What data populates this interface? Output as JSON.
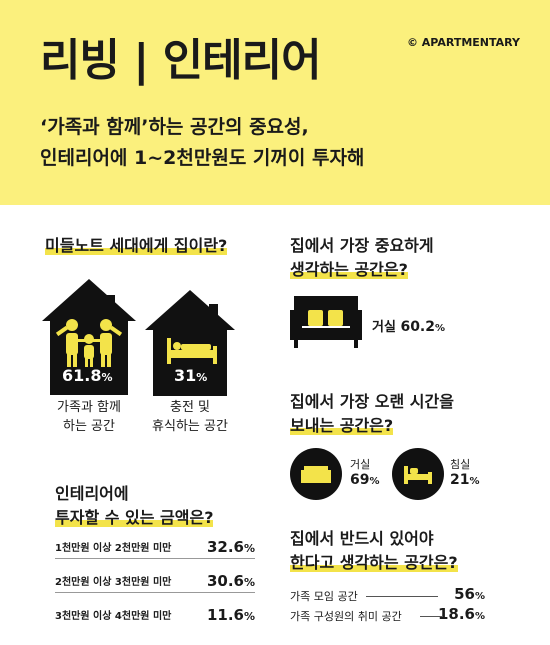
{
  "header": {
    "title": "리빙 | 인테리어",
    "credit": "© APARTMENTARY",
    "subtitle_line1": "‘가족과 함께’하는 공간의 중요성,",
    "subtitle_line2": "인테리어에 1~2천만원도 기꺼이 투자해"
  },
  "home_meaning": {
    "title": "미들노트 세대에게 집이란?",
    "items": [
      {
        "value": "61.8",
        "unit": "%",
        "label_line1": "가족과 함께",
        "label_line2": "하는 공간",
        "icon": "family-house-icon"
      },
      {
        "value": "31",
        "unit": "%",
        "label_line1": "충전 및",
        "label_line2": "휴식하는 공간",
        "icon": "bed-house-icon"
      }
    ]
  },
  "budget": {
    "title_line1": "인테리어에",
    "title_line2": "투자할 수 있는 금액은?",
    "rows": [
      {
        "label": "1천만원 이상 2천만원 미만",
        "value": "32.6",
        "unit": "%"
      },
      {
        "label": "2천만원 이상 3천만원 미만",
        "value": "30.6",
        "unit": "%"
      },
      {
        "label": "3천만원 이상 4천만원 미만",
        "value": "11.6",
        "unit": "%"
      }
    ]
  },
  "important_space": {
    "title_line1": "집에서 가장 중요하게",
    "title_line2": "생각하는 공간은?",
    "label": "거실",
    "value": "60.2",
    "unit": "%",
    "icon": "sofa-icon"
  },
  "longest_time": {
    "title_line1": "집에서 가장 오랜 시간을",
    "title_line2": "보내는 공간은?",
    "items": [
      {
        "label": "거실",
        "value": "69",
        "unit": "%",
        "icon": "sofa-icon"
      },
      {
        "label": "침실",
        "value": "21",
        "unit": "%",
        "icon": "bed-icon"
      }
    ]
  },
  "must_have": {
    "title_line1": "집에서 반드시 있어야",
    "title_line2": "한다고 생각하는 공간은?",
    "rows": [
      {
        "label": "가족 모임 공간",
        "value": "56",
        "unit": "%"
      },
      {
        "label": "가족 구성원의 취미 공간",
        "value": "18.6",
        "unit": "%"
      }
    ]
  },
  "colors": {
    "accent": "#fbf07d",
    "highlight": "#f3e34a",
    "dark": "#111111"
  }
}
